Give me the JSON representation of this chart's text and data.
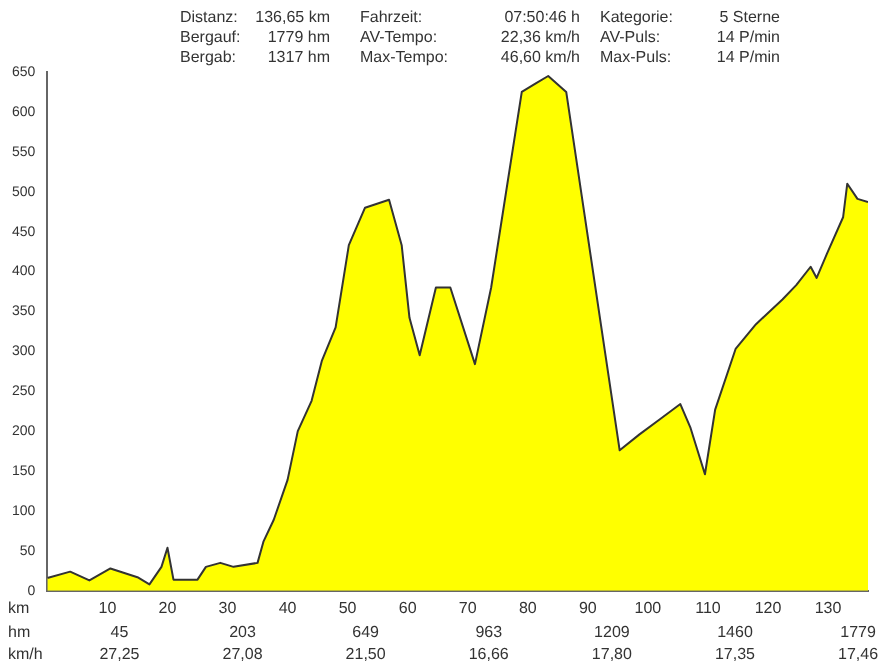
{
  "chart_data": {
    "type": "area",
    "xlabel": "km",
    "color": "#ffff00",
    "x": [
      0,
      3.8,
      7,
      10.5,
      15,
      17,
      19,
      20,
      21,
      25,
      26.4,
      28.8,
      31,
      35,
      36,
      37.7,
      40,
      41.7,
      44,
      45.7,
      48,
      50.2,
      52.9,
      56.9,
      59,
      60.3,
      62,
      64.7,
      67.1,
      71.2,
      73.9,
      76.6,
      79,
      81.4,
      83.4,
      86.4,
      95.3,
      98.6,
      102,
      105.4,
      107.1,
      109.5,
      111.2,
      114.6,
      118,
      122.4,
      124.7,
      127.1,
      128.1,
      129.8,
      132.5,
      133.2,
      134.9,
      136.65
    ],
    "values": [
      16,
      24,
      13,
      28,
      17,
      8,
      30,
      54,
      14,
      14,
      30,
      35,
      30,
      35,
      62,
      89,
      139,
      200,
      238,
      288,
      330,
      433,
      480,
      490,
      433,
      342,
      295,
      380,
      380,
      284,
      380,
      510,
      625,
      636,
      645,
      625,
      176,
      196,
      215,
      234,
      204,
      146,
      227,
      303,
      334,
      365,
      383,
      406,
      392,
      422,
      468,
      510,
      491,
      487
    ],
    "xlim": [
      0,
      136.65
    ],
    "xticks": [
      10,
      20,
      30,
      40,
      50,
      60,
      70,
      80,
      90,
      100,
      110,
      120,
      130
    ],
    "ylim": [
      0,
      650
    ],
    "yticks": [
      0,
      50,
      100,
      150,
      200,
      250,
      300,
      350,
      400,
      450,
      500,
      550,
      600,
      650
    ],
    "grid": false,
    "legend": false,
    "marker": "none",
    "annotations": [
      "Distanz:",
      "136,65 km",
      "Fahrzeit:",
      "07:50:46 h",
      "Kategorie:",
      "5 Sterne",
      "Bergauf:",
      "1779 hm",
      "AV-Tempo:",
      "22,36 km/h",
      "AV-Puls:",
      "14 P/min",
      "Bergab:",
      "1317 hm",
      "Max-Tempo:",
      "46,60 km/h",
      "Max-Puls:",
      "14 P/min",
      "hm",
      "45",
      "203",
      "649",
      "963",
      "1209",
      "1460",
      "1779",
      "km/h",
      "27,25",
      "27,08",
      "21,50",
      "16,66",
      "17,80",
      "17,35",
      "17,46"
    ]
  }
}
